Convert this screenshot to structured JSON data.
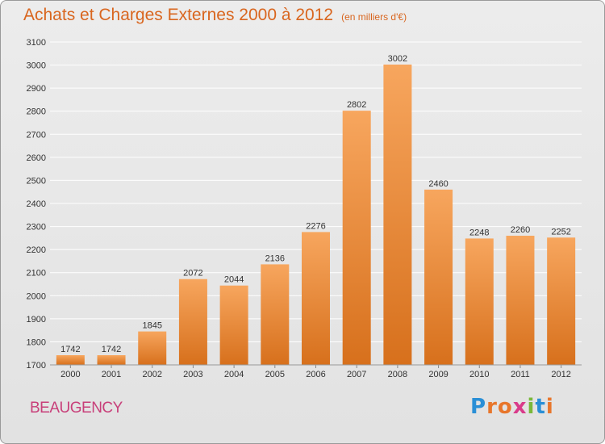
{
  "header": {
    "title": "Achats et Charges Externes 2000 à 2012",
    "subtitle": "(en milliers d'€)"
  },
  "footer": {
    "city": "BEAUGENCY",
    "logo_letters": [
      "P",
      "r",
      "o",
      "x",
      "i",
      "t",
      "i"
    ],
    "logo_colors": [
      "#2a8fd6",
      "#e8762b",
      "#e8762b",
      "#d93b8a",
      "#7ab83a",
      "#2a8fd6",
      "#e8762b"
    ]
  },
  "colors": {
    "bar_top": "#f7a65e",
    "bar_bottom": "#d7701c",
    "grid": "#ffffff",
    "axis_text": "#333333",
    "title": "#d9661f"
  },
  "chart_data": {
    "type": "bar",
    "title": "Achats et Charges Externes 2000 à 2012",
    "subtitle": "(en milliers d'€)",
    "categories": [
      "2000",
      "2001",
      "2002",
      "2003",
      "2004",
      "2005",
      "2006",
      "2007",
      "2008",
      "2009",
      "2010",
      "2011",
      "2012"
    ],
    "values": [
      1742,
      1742,
      1845,
      2072,
      2044,
      2136,
      2276,
      2802,
      3002,
      2460,
      2248,
      2260,
      2252
    ],
    "ylim": [
      1700,
      3100
    ],
    "yticks": [
      1700,
      1800,
      1900,
      2000,
      2100,
      2200,
      2300,
      2400,
      2500,
      2600,
      2700,
      2800,
      2900,
      3000,
      3100
    ],
    "xlabel": "",
    "ylabel": "",
    "grid": true,
    "legend": "none",
    "data_labels": true
  }
}
